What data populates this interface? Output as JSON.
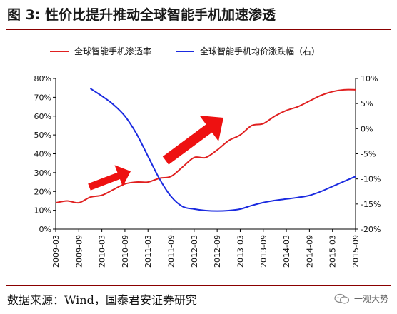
{
  "title": "图 3: 性价比提升推动全球智能手机加速渗透",
  "source": "数据来源：Wind，国泰君安证券研究",
  "watermark": "一观大势",
  "colors": {
    "penetration": "#e02020",
    "price_change": "#1a2ae0",
    "arrow": "#ee1111",
    "title_rule": "#8a0000"
  },
  "chart_data": {
    "type": "line",
    "title": "",
    "x_ticks": [
      "2009-03",
      "2009-09",
      "2010-03",
      "2010-09",
      "2011-03",
      "2011-09",
      "2012-03",
      "2012-09",
      "2013-03",
      "2013-09",
      "2014-03",
      "2014-09",
      "2015-03",
      "2015-09"
    ],
    "y_left": {
      "lim": [
        0,
        80
      ],
      "tick_labels": [
        "0%",
        "10%",
        "20%",
        "30%",
        "40%",
        "50%",
        "60%",
        "70%",
        "80%"
      ]
    },
    "y_right": {
      "lim": [
        -20,
        10
      ],
      "tick_labels": [
        "-20%",
        "-15%",
        "-10%",
        "-5%",
        "0%",
        "5%",
        "10%"
      ]
    },
    "series": [
      {
        "name": "全球智能手机渗透率",
        "axis": "left",
        "color": "#e02020",
        "x": [
          "2009-03",
          "2009-06",
          "2009-09",
          "2009-12",
          "2010-03",
          "2010-06",
          "2010-09",
          "2010-12",
          "2011-03",
          "2011-06",
          "2011-09",
          "2011-12",
          "2012-03",
          "2012-06",
          "2012-09",
          "2012-12",
          "2013-03",
          "2013-06",
          "2013-09",
          "2013-12",
          "2014-03",
          "2014-06",
          "2014-09",
          "2014-12",
          "2015-03",
          "2015-06",
          "2015-09"
        ],
        "values": [
          14,
          15,
          14,
          17,
          18,
          21,
          24,
          25,
          25,
          27,
          28,
          33,
          38,
          38,
          42,
          47,
          50,
          55,
          56,
          60,
          63,
          65,
          68,
          71,
          73,
          74,
          74
        ]
      },
      {
        "name": "全球智能手机均价涨跌幅（右）",
        "axis": "right",
        "color": "#1a2ae0",
        "x": [
          "2009-12",
          "2010-03",
          "2010-06",
          "2010-09",
          "2010-12",
          "2011-03",
          "2011-06",
          "2011-09",
          "2011-12",
          "2012-03",
          "2012-06",
          "2012-09",
          "2012-12",
          "2013-03",
          "2013-06",
          "2013-09",
          "2013-12",
          "2014-03",
          "2014-06",
          "2014-09",
          "2014-12",
          "2015-03",
          "2015-06",
          "2015-09"
        ],
        "values": [
          8,
          6.5,
          4.8,
          2.5,
          -1.0,
          -5.5,
          -10.0,
          -13.5,
          -15.5,
          -16.0,
          -16.3,
          -16.4,
          -16.3,
          -16.0,
          -15.3,
          -14.7,
          -14.3,
          -14.0,
          -13.7,
          -13.3,
          -12.5,
          -11.5,
          -10.5,
          -9.5
        ]
      }
    ],
    "grid": false,
    "legend": "top"
  }
}
